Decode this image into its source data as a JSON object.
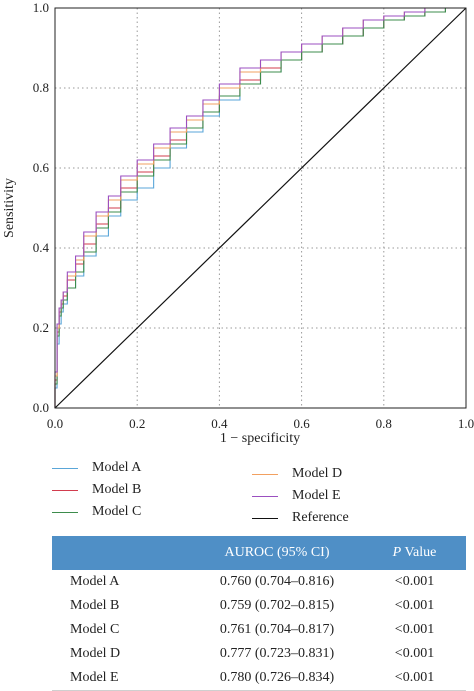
{
  "chart_data": {
    "type": "line",
    "title": "",
    "xlabel": "1 − specificity",
    "ylabel": "Sensitivity",
    "xlim": [
      0,
      1
    ],
    "ylim": [
      0,
      1
    ],
    "xticks": [
      "0.0",
      "0.2",
      "0.4",
      "0.6",
      "0.8",
      "1.0"
    ],
    "yticks": [
      "0.0",
      "0.2",
      "0.4",
      "0.6",
      "0.8",
      "1.0"
    ],
    "grid": true,
    "series": [
      {
        "name": "Model A",
        "color": "#5aa6d8",
        "x": [
          0,
          0.005,
          0.01,
          0.015,
          0.02,
          0.03,
          0.05,
          0.07,
          0.1,
          0.13,
          0.16,
          0.2,
          0.24,
          0.28,
          0.32,
          0.36,
          0.4,
          0.45,
          0.5,
          0.55,
          0.6,
          0.65,
          0.7,
          0.75,
          0.8,
          0.85,
          0.9,
          0.95,
          1.0
        ],
        "y": [
          0,
          0.05,
          0.16,
          0.21,
          0.24,
          0.26,
          0.3,
          0.33,
          0.38,
          0.43,
          0.48,
          0.52,
          0.55,
          0.6,
          0.65,
          0.69,
          0.73,
          0.77,
          0.81,
          0.84,
          0.87,
          0.89,
          0.91,
          0.93,
          0.95,
          0.97,
          0.98,
          0.99,
          1.0
        ]
      },
      {
        "name": "Model B",
        "color": "#d23c4e",
        "x": [
          0,
          0.005,
          0.01,
          0.015,
          0.02,
          0.03,
          0.05,
          0.07,
          0.1,
          0.13,
          0.16,
          0.2,
          0.24,
          0.28,
          0.32,
          0.36,
          0.4,
          0.45,
          0.5,
          0.55,
          0.6,
          0.65,
          0.7,
          0.75,
          0.8,
          0.85,
          0.9,
          0.95,
          1.0
        ],
        "y": [
          0,
          0.07,
          0.19,
          0.24,
          0.26,
          0.28,
          0.32,
          0.36,
          0.41,
          0.46,
          0.5,
          0.55,
          0.59,
          0.63,
          0.67,
          0.7,
          0.74,
          0.78,
          0.82,
          0.85,
          0.87,
          0.89,
          0.91,
          0.93,
          0.95,
          0.97,
          0.98,
          0.99,
          1.0
        ]
      },
      {
        "name": "Model C",
        "color": "#3d8c4c",
        "x": [
          0,
          0.005,
          0.01,
          0.015,
          0.02,
          0.03,
          0.05,
          0.07,
          0.1,
          0.13,
          0.16,
          0.2,
          0.24,
          0.28,
          0.32,
          0.36,
          0.4,
          0.45,
          0.5,
          0.55,
          0.6,
          0.65,
          0.7,
          0.75,
          0.8,
          0.85,
          0.9,
          0.95,
          1.0
        ],
        "y": [
          0,
          0.06,
          0.18,
          0.23,
          0.25,
          0.27,
          0.3,
          0.34,
          0.39,
          0.45,
          0.49,
          0.54,
          0.58,
          0.62,
          0.66,
          0.7,
          0.74,
          0.78,
          0.81,
          0.84,
          0.87,
          0.89,
          0.91,
          0.93,
          0.95,
          0.97,
          0.98,
          0.99,
          1.0
        ]
      },
      {
        "name": "Model D",
        "color": "#f2a060",
        "x": [
          0,
          0.005,
          0.01,
          0.015,
          0.02,
          0.03,
          0.05,
          0.07,
          0.1,
          0.13,
          0.16,
          0.2,
          0.24,
          0.28,
          0.32,
          0.36,
          0.4,
          0.45,
          0.5,
          0.55,
          0.6,
          0.65,
          0.7,
          0.75,
          0.8,
          0.85,
          0.9,
          0.95,
          1.0
        ],
        "y": [
          0,
          0.08,
          0.2,
          0.25,
          0.27,
          0.29,
          0.33,
          0.37,
          0.43,
          0.48,
          0.52,
          0.57,
          0.61,
          0.65,
          0.69,
          0.72,
          0.76,
          0.8,
          0.84,
          0.87,
          0.89,
          0.91,
          0.93,
          0.95,
          0.97,
          0.98,
          0.99,
          1.0,
          1.0
        ]
      },
      {
        "name": "Model E",
        "color": "#9b4fc0",
        "x": [
          0,
          0.005,
          0.01,
          0.015,
          0.02,
          0.03,
          0.05,
          0.07,
          0.1,
          0.13,
          0.16,
          0.2,
          0.24,
          0.28,
          0.32,
          0.36,
          0.4,
          0.45,
          0.5,
          0.55,
          0.6,
          0.65,
          0.7,
          0.75,
          0.8,
          0.85,
          0.9,
          0.95,
          1.0
        ],
        "y": [
          0,
          0.09,
          0.21,
          0.25,
          0.27,
          0.29,
          0.34,
          0.38,
          0.44,
          0.49,
          0.53,
          0.58,
          0.62,
          0.66,
          0.7,
          0.73,
          0.77,
          0.81,
          0.85,
          0.87,
          0.89,
          0.91,
          0.93,
          0.95,
          0.97,
          0.98,
          0.99,
          1.0,
          1.0
        ]
      },
      {
        "name": "Reference",
        "color": "#111111",
        "x": [
          0,
          1
        ],
        "y": [
          0,
          1
        ]
      }
    ]
  },
  "table": {
    "headers": [
      "",
      "AUROC (95% CI)",
      "P Value"
    ],
    "rows": [
      [
        "Model A",
        "0.760 (0.704–0.816)",
        "<0.001"
      ],
      [
        "Model B",
        "0.759 (0.702–0.815)",
        "<0.001"
      ],
      [
        "Model C",
        "0.761 (0.704–0.817)",
        "<0.001"
      ],
      [
        "Model D",
        "0.777 (0.723–0.831)",
        "<0.001"
      ],
      [
        "Model E",
        "0.780 (0.726–0.834)",
        "<0.001"
      ]
    ]
  }
}
